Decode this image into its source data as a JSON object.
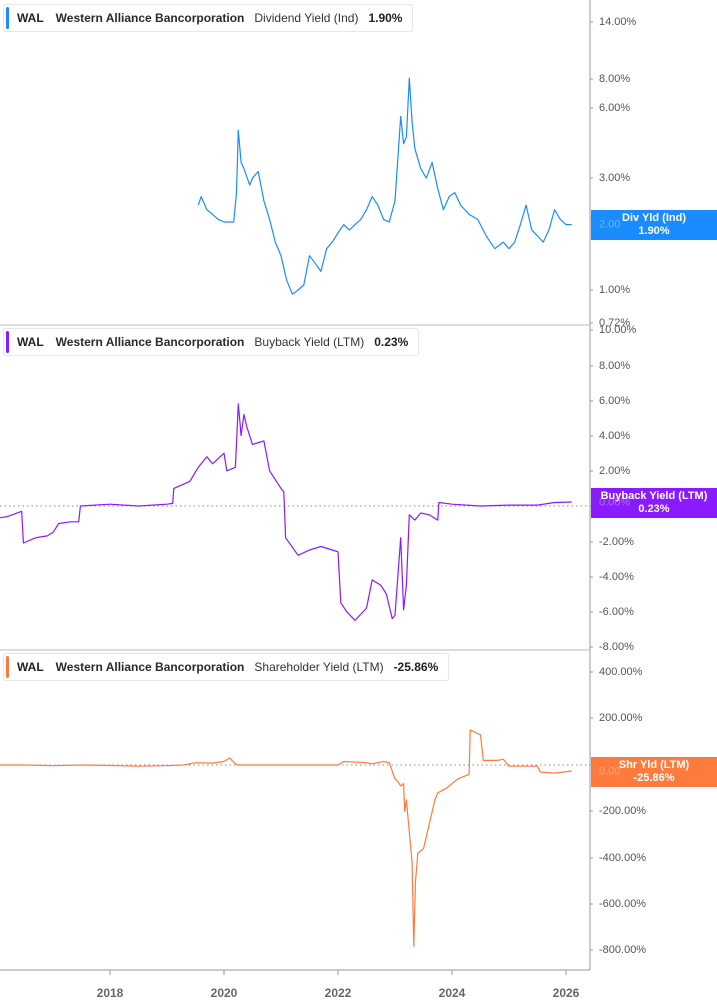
{
  "colors": {
    "dividend": "#1a8cff",
    "buyback": "#8a1aff",
    "shareholder": "#ff7a3d",
    "axis": "#999999",
    "zero_line": "#888888",
    "axis_text": "#555555"
  },
  "panes": [
    {
      "legend": {
        "ticker": "WAL",
        "company": "Western Alliance Bancorporation",
        "metric": "Dividend Yield (Ind)",
        "value": "1.90%"
      },
      "flag": {
        "label": "Div Yld (Ind)",
        "value": "1.90%",
        "ghost": "2.00"
      },
      "y_ticks": [
        "14.00%",
        "8.00%",
        "6.00%",
        "3.00%",
        "1.00%",
        "0.72%"
      ]
    },
    {
      "legend": {
        "ticker": "WAL",
        "company": "Western Alliance Bancorporation",
        "metric": "Buyback Yield (LTM)",
        "value": "0.23%"
      },
      "flag": {
        "label": "Buyback Yield (LTM)",
        "value": "0.23%",
        "ghost": "0.00%"
      },
      "y_ticks": [
        "10.00%",
        "8.00%",
        "6.00%",
        "4.00%",
        "2.00%",
        "-2.00%",
        "-4.00%",
        "-6.00%",
        "-8.00%"
      ]
    },
    {
      "legend": {
        "ticker": "WAL",
        "company": "Western Alliance Bancorporation",
        "metric": "Shareholder Yield (LTM)",
        "value": "-25.86%"
      },
      "flag": {
        "label": "Shr Yld (LTM)",
        "value": "-25.86%",
        "ghost": "0.00"
      },
      "y_ticks": [
        "400.00%",
        "200.00%",
        "-200.00%",
        "-400.00%",
        "-600.00%",
        "-800.00%"
      ]
    }
  ],
  "x_axis": {
    "ticks": [
      "2018",
      "2020",
      "2022",
      "2024",
      "2026"
    ]
  },
  "chart_data": [
    {
      "type": "line",
      "title": "WAL Western Alliance Bancorporation Dividend Yield (Ind)",
      "scale": "log",
      "ylim": [
        0.72,
        16
      ],
      "y_ticks": [
        14,
        8,
        6,
        3,
        2,
        1,
        0.72
      ],
      "latest": 1.9,
      "x": [
        2019.55,
        2019.6,
        2019.7,
        2019.8,
        2019.9,
        2020.0,
        2020.1,
        2020.17,
        2020.22,
        2020.25,
        2020.3,
        2020.35,
        2020.45,
        2020.5,
        2020.6,
        2020.7,
        2020.8,
        2020.9,
        2021.0,
        2021.1,
        2021.2,
        2021.3,
        2021.4,
        2021.5,
        2021.6,
        2021.7,
        2021.8,
        2021.9,
        2022.0,
        2022.1,
        2022.2,
        2022.3,
        2022.4,
        2022.5,
        2022.6,
        2022.7,
        2022.8,
        2022.9,
        2023.0,
        2023.1,
        2023.15,
        2023.2,
        2023.25,
        2023.3,
        2023.35,
        2023.45,
        2023.55,
        2023.65,
        2023.75,
        2023.85,
        2023.95,
        2024.05,
        2024.15,
        2024.3,
        2024.45,
        2024.6,
        2024.75,
        2024.9,
        2025.0,
        2025.1,
        2025.2,
        2025.3,
        2025.4,
        2025.5,
        2025.6,
        2025.7,
        2025.8,
        2025.9,
        2026.0,
        2026.1
      ],
      "values": [
        2.3,
        2.5,
        2.2,
        2.1,
        2.0,
        1.95,
        1.95,
        1.95,
        2.6,
        4.8,
        3.5,
        3.3,
        2.8,
        3.0,
        3.2,
        2.4,
        2.0,
        1.6,
        1.4,
        1.1,
        0.96,
        1.0,
        1.05,
        1.4,
        1.3,
        1.2,
        1.5,
        1.6,
        1.75,
        1.9,
        1.8,
        1.9,
        2.0,
        2.2,
        2.5,
        2.3,
        2.0,
        1.95,
        2.4,
        5.5,
        4.2,
        4.5,
        8.0,
        5.2,
        4.0,
        3.3,
        3.0,
        3.5,
        2.7,
        2.2,
        2.5,
        2.6,
        2.3,
        2.1,
        2.0,
        1.7,
        1.5,
        1.6,
        1.5,
        1.6,
        1.9,
        2.3,
        1.8,
        1.7,
        1.6,
        1.8,
        2.2,
        2.0,
        1.9,
        1.9
      ]
    },
    {
      "type": "line",
      "title": "WAL Western Alliance Bancorporation Buyback Yield (LTM)",
      "ylim": [
        -9,
        10.5
      ],
      "y_ticks": [
        10,
        8,
        6,
        4,
        2,
        0,
        -2,
        -4,
        -6,
        -8
      ],
      "latest": 0.23,
      "x": [
        2016.0,
        2016.2,
        2016.45,
        2016.48,
        2016.7,
        2016.9,
        2017.0,
        2017.1,
        2017.3,
        2017.45,
        2017.48,
        2018.0,
        2018.5,
        2019.0,
        2019.1,
        2019.12,
        2019.4,
        2019.55,
        2019.7,
        2019.8,
        2020.0,
        2020.05,
        2020.2,
        2020.25,
        2020.3,
        2020.35,
        2020.4,
        2020.5,
        2020.7,
        2020.8,
        2020.9,
        2021.0,
        2021.05,
        2021.08,
        2021.3,
        2021.5,
        2021.7,
        2021.9,
        2022.0,
        2022.05,
        2022.15,
        2022.3,
        2022.5,
        2022.6,
        2022.75,
        2022.85,
        2022.95,
        2023.0,
        2023.1,
        2023.15,
        2023.2,
        2023.25,
        2023.35,
        2023.45,
        2023.6,
        2023.75,
        2023.77,
        2024.0,
        2024.5,
        2025.0,
        2025.5,
        2025.8,
        2026.1
      ],
      "values": [
        -0.7,
        -0.6,
        -0.3,
        -2.1,
        -1.8,
        -1.7,
        -1.5,
        -1.0,
        -0.9,
        -0.9,
        0.0,
        0.1,
        0.0,
        0.1,
        0.15,
        1.0,
        1.4,
        2.2,
        2.8,
        2.4,
        3.0,
        2.0,
        2.2,
        5.8,
        4.0,
        5.2,
        4.5,
        3.5,
        3.7,
        2.0,
        1.5,
        1.0,
        0.8,
        -1.8,
        -2.8,
        -2.5,
        -2.3,
        -2.5,
        -2.6,
        -5.5,
        -6.0,
        -6.5,
        -5.8,
        -4.2,
        -4.5,
        -5.0,
        -6.4,
        -6.2,
        -1.8,
        -5.9,
        -4.5,
        -0.5,
        -0.8,
        -0.4,
        -0.5,
        -0.8,
        0.2,
        0.1,
        0.0,
        0.05,
        0.05,
        0.2,
        0.23
      ]
    },
    {
      "type": "line",
      "title": "WAL Western Alliance Bancorporation Shareholder Yield (LTM)",
      "ylim": [
        -860,
        460
      ],
      "y_ticks": [
        400,
        200,
        0,
        -200,
        -400,
        -600,
        -800
      ],
      "latest": -25.86,
      "x": [
        2016.0,
        2016.5,
        2017.0,
        2017.5,
        2018.0,
        2018.5,
        2019.0,
        2019.3,
        2019.5,
        2019.8,
        2020.0,
        2020.1,
        2020.2,
        2020.25,
        2021.0,
        2021.5,
        2022.0,
        2022.1,
        2022.5,
        2022.6,
        2022.8,
        2022.9,
        2023.0,
        2023.05,
        2023.1,
        2023.15,
        2023.17,
        2023.2,
        2023.3,
        2023.33,
        2023.36,
        2023.4,
        2023.5,
        2023.7,
        2023.75,
        2023.9,
        2024.1,
        2024.3,
        2024.32,
        2024.5,
        2024.55,
        2024.8,
        2024.9,
        2025.0,
        2025.3,
        2025.5,
        2025.55,
        2025.8,
        2026.1
      ],
      "values": [
        0,
        0,
        -3,
        0,
        -2,
        -5,
        -3,
        0,
        10,
        8,
        15,
        30,
        5,
        0,
        0,
        0,
        0,
        15,
        10,
        5,
        15,
        10,
        -60,
        -70,
        -90,
        -80,
        -200,
        -150,
        -420,
        -780,
        -500,
        -380,
        -360,
        -150,
        -120,
        -100,
        -60,
        -40,
        150,
        130,
        20,
        20,
        25,
        -5,
        -5,
        -5,
        -30,
        -35,
        -26
      ]
    }
  ]
}
